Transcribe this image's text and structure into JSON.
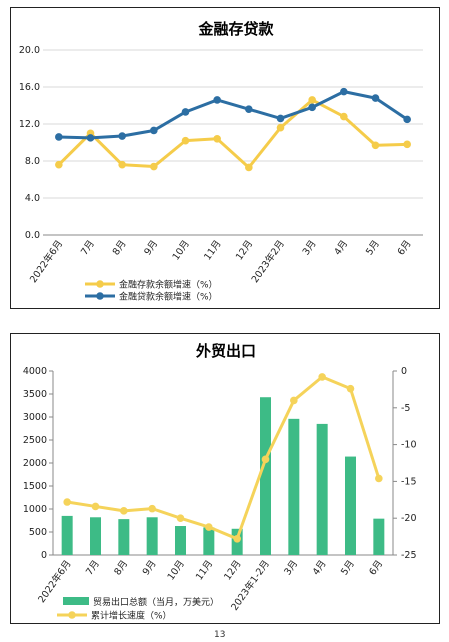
{
  "chart_data": [
    {
      "type": "line",
      "title": "金融存贷款",
      "categories": [
        "2022年6月",
        "7月",
        "8月",
        "9月",
        "10月",
        "11月",
        "12月",
        "2023年2月",
        "3月",
        "4月",
        "5月",
        "6月"
      ],
      "ylim": [
        0,
        20
      ],
      "yticks": [
        "0.0",
        "4.0",
        "8.0",
        "12.0",
        "16.0",
        "20.0"
      ],
      "series": [
        {
          "name": "金融存款余额增速（%）",
          "color": "#f5cc4a",
          "values": [
            7.6,
            11.0,
            7.6,
            7.4,
            10.2,
            10.4,
            7.3,
            11.6,
            14.6,
            12.8,
            9.7,
            9.8
          ]
        },
        {
          "name": "金融贷款余额增速（%）",
          "color": "#2c6ea3",
          "values": [
            10.6,
            10.5,
            10.7,
            11.3,
            13.3,
            14.6,
            13.6,
            12.6,
            13.8,
            15.5,
            14.8,
            12.5
          ]
        }
      ],
      "legend": "bottom-left",
      "grid": true
    },
    {
      "type": "bar",
      "title": "外贸出口",
      "categories": [
        "2022年6月",
        "7月",
        "8月",
        "9月",
        "10月",
        "11月",
        "12月",
        "2023年1-2月",
        "3月",
        "4月",
        "5月",
        "6月"
      ],
      "ylim_left": [
        0,
        4000
      ],
      "yticks_left": [
        "0",
        "500",
        "1000",
        "1500",
        "2000",
        "2500",
        "3000",
        "3500",
        "4000"
      ],
      "ylim_right": [
        -25,
        0
      ],
      "yticks_right": [
        "0",
        "-5",
        "-10",
        "-15",
        "-20",
        "-25"
      ],
      "series": [
        {
          "name": "贸易出口总额（当月，万美元）",
          "type": "bar",
          "axis": "left",
          "color": "#3dbb86",
          "values": [
            850,
            820,
            780,
            820,
            630,
            600,
            570,
            3430,
            2960,
            2850,
            2140,
            790
          ]
        },
        {
          "name": "累计增长速度（%）",
          "type": "line",
          "axis": "right",
          "color": "#f5d35a",
          "values": [
            -17.8,
            -18.4,
            -19.0,
            -18.7,
            -20.0,
            -21.2,
            -22.8,
            -12.0,
            -4.0,
            -0.8,
            -2.4,
            -14.6
          ]
        }
      ],
      "legend": "bottom-left",
      "grid": false
    }
  ],
  "page_number": "13"
}
